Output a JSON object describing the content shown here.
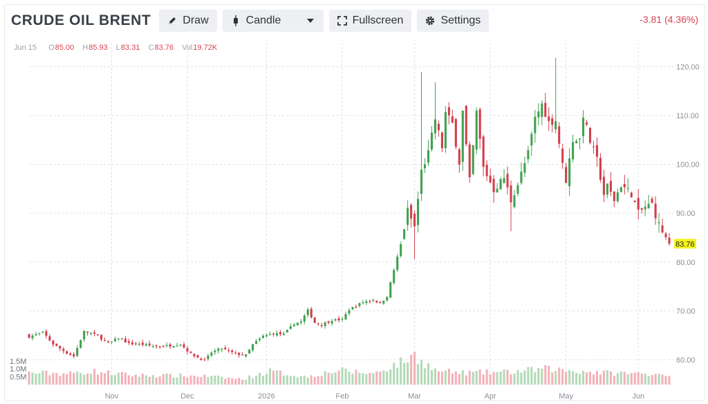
{
  "header": {
    "title": "CRUDE OIL BRENT",
    "draw_label": "Draw",
    "chart_type_label": "Candle",
    "fullscreen_label": "Fullscreen",
    "settings_label": "Settings",
    "change_text": "-3.81 (4.36%)"
  },
  "ohlc": {
    "date": "Jun 15",
    "open_key": "O",
    "open": "85.00",
    "high_key": "H",
    "high": "85.93",
    "low_key": "L",
    "low": "83.31",
    "close_key": "C",
    "close": "83.76",
    "vol_key": "Vol",
    "vol": "19.72K"
  },
  "colors": {
    "up": "#3fa14f",
    "down": "#d33d4c",
    "up_vol": "#b3dab7",
    "down_vol": "#f3b1b8",
    "grid": "#dcdfe3",
    "last_price_bg": "#f3f31f"
  },
  "chart_data": {
    "type": "candlestick",
    "title": "CRUDE OIL BRENT",
    "y_ticks": [
      "120.00",
      "110.00",
      "100.00",
      "90.00",
      "80.00",
      "70.00",
      "60.00"
    ],
    "y_tick_values": [
      120,
      110,
      100,
      90,
      80,
      70,
      60
    ],
    "ylim": [
      55,
      123
    ],
    "x_ticks": [
      "Nov",
      "Dec",
      "2026",
      "Feb",
      "Mar",
      "Apr",
      "May",
      "Jun"
    ],
    "x_tick_index": [
      24,
      46,
      69,
      91,
      112,
      134,
      156,
      177
    ],
    "volume_ticks": [
      "1.5M",
      "1.0M",
      "0.5M"
    ],
    "volume_tick_values": [
      1.5,
      1.0,
      0.5
    ],
    "volume_max": 2.2,
    "last_price": "83.76",
    "last_price_value": 83.76,
    "grid": true,
    "waypoints": [
      [
        0,
        64.7
      ],
      [
        4,
        65.6
      ],
      [
        7,
        63.2
      ],
      [
        11,
        61.4
      ],
      [
        13,
        60.7
      ],
      [
        16,
        65.8
      ],
      [
        20,
        64.9
      ],
      [
        23,
        63.3
      ],
      [
        26,
        64.5
      ],
      [
        29,
        63.3
      ],
      [
        33,
        63.1
      ],
      [
        37,
        62.7
      ],
      [
        41,
        62.9
      ],
      [
        44,
        63.2
      ],
      [
        47,
        61.2
      ],
      [
        51,
        59.8
      ],
      [
        53,
        61.5
      ],
      [
        56,
        62.3
      ],
      [
        60,
        61.2
      ],
      [
        63,
        60.9
      ],
      [
        65,
        63.1
      ],
      [
        68,
        64.8
      ],
      [
        71,
        65.4
      ],
      [
        74,
        65.2
      ],
      [
        77,
        67.4
      ],
      [
        79,
        67.8
      ],
      [
        81,
        70.1
      ],
      [
        83,
        67.6
      ],
      [
        85,
        67.2
      ],
      [
        88,
        68.1
      ],
      [
        91,
        68.2
      ],
      [
        93,
        70.3
      ],
      [
        97,
        71.8
      ],
      [
        100,
        72.3
      ],
      [
        102,
        71.5
      ],
      [
        104,
        73.0
      ],
      [
        106,
        78.4
      ],
      [
        108,
        83.6
      ],
      [
        110,
        90.5
      ],
      [
        112,
        87.2
      ],
      [
        114,
        98.6
      ],
      [
        116,
        102.3
      ],
      [
        118,
        109.3
      ],
      [
        120,
        103.6
      ],
      [
        121,
        110.5
      ],
      [
        123,
        108.3
      ],
      [
        125,
        100.4
      ],
      [
        126,
        110.8
      ],
      [
        128,
        96.6
      ],
      [
        130,
        110.6
      ],
      [
        132,
        99.3
      ],
      [
        134,
        96.4
      ],
      [
        135,
        94.8
      ],
      [
        138,
        97.3
      ],
      [
        140,
        92.6
      ],
      [
        142,
        96.0
      ],
      [
        145,
        102.3
      ],
      [
        147,
        109.4
      ],
      [
        149,
        112.3
      ],
      [
        151,
        108.6
      ],
      [
        153,
        109.0
      ],
      [
        155,
        99.8
      ],
      [
        156,
        96.8
      ],
      [
        158,
        105.1
      ],
      [
        160,
        105.1
      ],
      [
        161,
        110.2
      ],
      [
        163,
        104.7
      ],
      [
        165,
        100.9
      ],
      [
        167,
        93.9
      ],
      [
        168,
        95.5
      ],
      [
        170,
        92.7
      ],
      [
        172,
        95.8
      ],
      [
        175,
        94.0
      ],
      [
        177,
        90.0
      ],
      [
        179,
        91.3
      ],
      [
        181,
        91.8
      ],
      [
        183,
        87.6
      ],
      [
        185,
        85.0
      ],
      [
        186,
        83.8
      ]
    ],
    "volume_profile": [
      [
        0,
        0.75
      ],
      [
        12,
        0.7
      ],
      [
        18,
        0.85
      ],
      [
        30,
        0.6
      ],
      [
        50,
        0.55
      ],
      [
        62,
        0.35
      ],
      [
        70,
        0.85
      ],
      [
        80,
        0.5
      ],
      [
        90,
        0.9
      ],
      [
        100,
        0.7
      ],
      [
        108,
        1.4
      ],
      [
        112,
        1.85
      ],
      [
        118,
        0.9
      ],
      [
        125,
        0.75
      ],
      [
        140,
        0.8
      ],
      [
        150,
        1.0
      ],
      [
        160,
        0.85
      ],
      [
        168,
        0.75
      ],
      [
        176,
        0.7
      ],
      [
        186,
        0.72
      ]
    ]
  }
}
